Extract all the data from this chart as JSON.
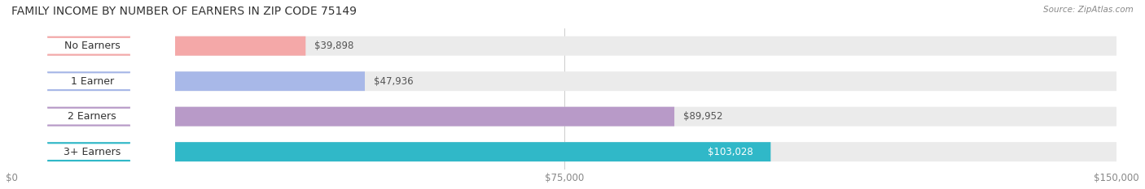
{
  "title": "FAMILY INCOME BY NUMBER OF EARNERS IN ZIP CODE 75149",
  "source": "Source: ZipAtlas.com",
  "categories": [
    "No Earners",
    "1 Earner",
    "2 Earners",
    "3+ Earners"
  ],
  "values": [
    39898,
    47936,
    89952,
    103028
  ],
  "bar_colors": [
    "#f4a8a8",
    "#a8b8e8",
    "#b89ac8",
    "#30b8c8"
  ],
  "label_colors": [
    "#c87878",
    "#7890c8",
    "#9878b8",
    "#20a0b0"
  ],
  "bar_bg_color": "#f0f0f0",
  "value_labels": [
    "$39,898",
    "$47,936",
    "$89,952",
    "$103,028"
  ],
  "x_ticks": [
    0,
    75000,
    150000
  ],
  "x_tick_labels": [
    "$0",
    "$75,000",
    "$150,000"
  ],
  "xlim": [
    0,
    150000
  ],
  "background_color": "#ffffff",
  "bar_height": 0.55,
  "bar_spacing": 1.0,
  "title_fontsize": 10,
  "label_fontsize": 9,
  "value_fontsize": 8.5,
  "tick_fontsize": 8.5
}
